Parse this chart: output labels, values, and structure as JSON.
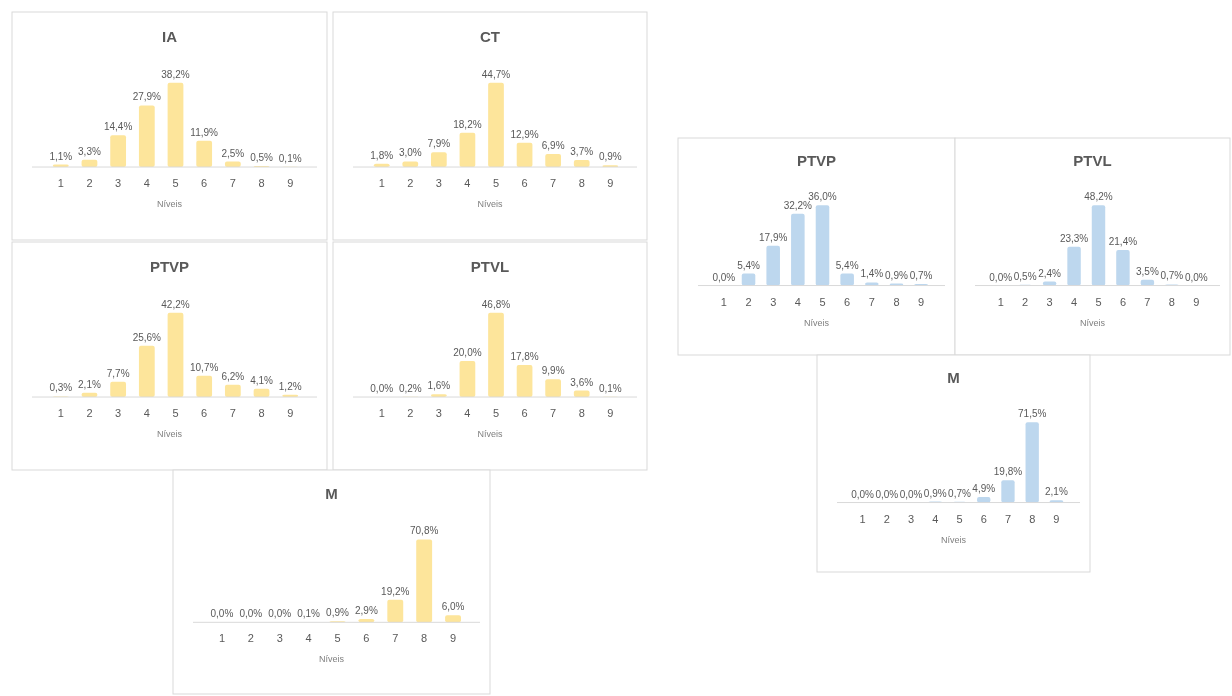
{
  "chart_data": [
    {
      "type": "bar",
      "title": "IA",
      "xlabel": "Níveis",
      "categories": [
        "1",
        "2",
        "3",
        "4",
        "5",
        "6",
        "7",
        "8",
        "9"
      ],
      "color": "#fde59b",
      "values": [
        1.1,
        3.3,
        14.4,
        27.9,
        38.2,
        11.9,
        2.5,
        0.5,
        0.1
      ],
      "value_labels": [
        "1,1%",
        "3,3%",
        "14,4%",
        "27,9%",
        "38,2%",
        "11,9%",
        "2,5%",
        "0,5%",
        "0,1%"
      ]
    },
    {
      "type": "bar",
      "title": "CT",
      "xlabel": "Níveis",
      "categories": [
        "1",
        "2",
        "3",
        "4",
        "5",
        "6",
        "7",
        "8",
        "9"
      ],
      "color": "#fde59b",
      "values": [
        1.8,
        3.0,
        7.9,
        18.2,
        44.7,
        12.9,
        6.9,
        3.7,
        0.9
      ],
      "value_labels": [
        "1,8%",
        "3,0%",
        "7,9%",
        "18,2%",
        "44,7%",
        "12,9%",
        "6,9%",
        "3,7%",
        "0,9%"
      ]
    },
    {
      "type": "bar",
      "title": "PTVP",
      "xlabel": "Níveis",
      "categories": [
        "1",
        "2",
        "3",
        "4",
        "5",
        "6",
        "7",
        "8",
        "9"
      ],
      "color": "#fde59b",
      "values": [
        0.3,
        2.1,
        7.7,
        25.6,
        42.2,
        10.7,
        6.2,
        4.1,
        1.2
      ],
      "value_labels": [
        "0,3%",
        "2,1%",
        "7,7%",
        "25,6%",
        "42,2%",
        "10,7%",
        "6,2%",
        "4,1%",
        "1,2%"
      ]
    },
    {
      "type": "bar",
      "title": "PTVL",
      "xlabel": "Níveis",
      "categories": [
        "1",
        "2",
        "3",
        "4",
        "5",
        "6",
        "7",
        "8",
        "9"
      ],
      "color": "#fde59b",
      "values": [
        0.0,
        0.2,
        1.6,
        20.0,
        46.8,
        17.8,
        9.9,
        3.6,
        0.1
      ],
      "value_labels": [
        "0,0%",
        "0,2%",
        "1,6%",
        "20,0%",
        "46,8%",
        "17,8%",
        "9,9%",
        "3,6%",
        "0,1%"
      ]
    },
    {
      "type": "bar",
      "title": "M",
      "xlabel": "Níveis",
      "categories": [
        "1",
        "2",
        "3",
        "4",
        "5",
        "6",
        "7",
        "8",
        "9"
      ],
      "color": "#fde59b",
      "values": [
        0.0,
        0.0,
        0.0,
        0.1,
        0.9,
        2.9,
        19.2,
        70.8,
        6.0
      ],
      "value_labels": [
        "0,0%",
        "0,0%",
        "0,0%",
        "0,1%",
        "0,9%",
        "2,9%",
        "19,2%",
        "70,8%",
        "6,0%"
      ]
    },
    {
      "type": "bar",
      "title": "PTVP",
      "xlabel": "Níveis",
      "categories": [
        "1",
        "2",
        "3",
        "4",
        "5",
        "6",
        "7",
        "8",
        "9"
      ],
      "color": "#bdd7ee",
      "values": [
        0.0,
        5.4,
        17.9,
        32.2,
        36.0,
        5.4,
        1.4,
        0.9,
        0.7
      ],
      "value_labels": [
        "0,0%",
        "5,4%",
        "17,9%",
        "32,2%",
        "36,0%",
        "5,4%",
        "1,4%",
        "0,9%",
        "0,7%"
      ]
    },
    {
      "type": "bar",
      "title": "PTVL",
      "xlabel": "Níveis",
      "categories": [
        "1",
        "2",
        "3",
        "4",
        "5",
        "6",
        "7",
        "8",
        "9"
      ],
      "color": "#bdd7ee",
      "values": [
        0.0,
        0.5,
        2.4,
        23.3,
        48.2,
        21.4,
        3.5,
        0.7,
        0.0
      ],
      "value_labels": [
        "0,0%",
        "0,5%",
        "2,4%",
        "23,3%",
        "48,2%",
        "21,4%",
        "3,5%",
        "0,7%",
        "0,0%"
      ]
    },
    {
      "type": "bar",
      "title": "M",
      "xlabel": "Níveis",
      "categories": [
        "1",
        "2",
        "3",
        "4",
        "5",
        "6",
        "7",
        "8",
        "9"
      ],
      "color": "#bdd7ee",
      "values": [
        0.0,
        0.0,
        0.0,
        0.9,
        0.7,
        4.9,
        19.8,
        71.5,
        2.1
      ],
      "value_labels": [
        "0,0%",
        "0,0%",
        "0,0%",
        "0,9%",
        "0,7%",
        "4,9%",
        "19,8%",
        "71,5%",
        "2,1%"
      ]
    }
  ]
}
